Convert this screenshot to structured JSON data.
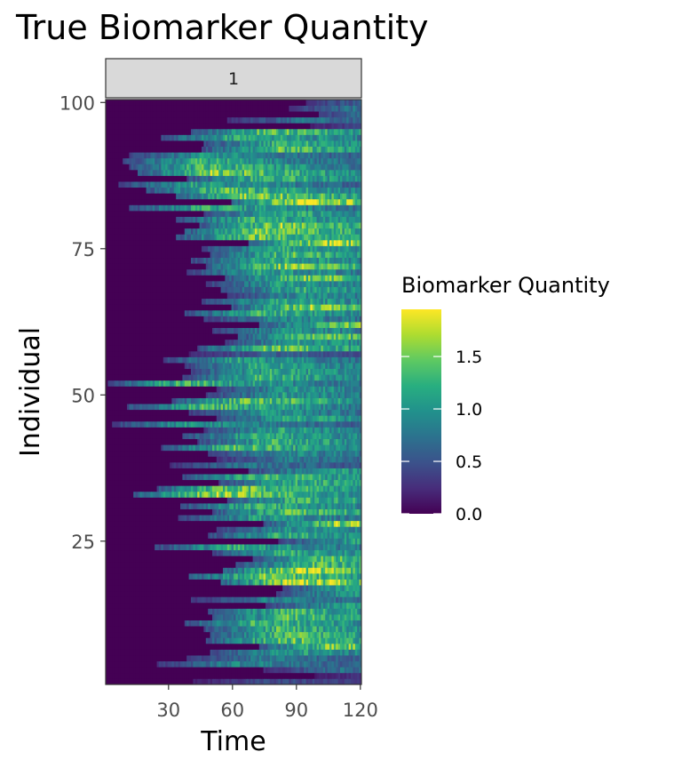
{
  "chart_data": {
    "type": "heatmap",
    "title": "True Biomarker Quantity",
    "xlabel": "Time",
    "ylabel": "Individual",
    "facet": "1",
    "x_range": [
      1,
      120
    ],
    "y_range": [
      1,
      100
    ],
    "x_ticks": [
      30,
      60,
      90,
      120
    ],
    "y_ticks": [
      25,
      50,
      75,
      100
    ],
    "legend": {
      "title": "Biomarker Quantity",
      "ticks": [
        0.0,
        0.5,
        1.0,
        1.5
      ],
      "tick_labels": [
        "0.0",
        "0.5",
        "1.0",
        "1.5"
      ],
      "range": [
        0,
        1.95
      ],
      "colormap": "viridis"
    },
    "onset_time_by_individual": [
      42,
      99,
      75,
      25,
      39,
      50,
      73,
      48,
      50,
      47,
      38,
      51,
      49,
      76,
      41,
      81,
      84,
      55,
      40,
      56,
      62,
      70,
      51,
      24,
      82,
      49,
      53,
      75,
      35,
      51,
      36,
      58,
      14,
      25,
      54,
      37,
      68,
      31,
      53,
      49,
      27,
      44,
      37,
      47,
      4,
      53,
      40,
      11,
      32,
      48,
      53,
      2,
      37,
      41,
      38,
      28,
      40,
      44,
      57,
      63,
      51,
      73,
      47,
      38,
      60,
      46,
      58,
      55,
      48,
      57,
      39,
      48,
      41,
      50,
      46,
      68,
      34,
      38,
      45,
      34,
      47,
      12,
      60,
      34,
      20,
      7,
      39,
      16,
      12,
      9,
      12,
      46,
      47,
      27,
      41,
      97,
      58,
      101,
      87,
      95
    ],
    "peak_quantity_by_individual": [
      0.45,
      0.4,
      0.7,
      0.9,
      0.8,
      1.1,
      1.5,
      1.45,
      1.35,
      1.3,
      1.3,
      1.35,
      1.3,
      1.05,
      0.85,
      1.1,
      1.2,
      1.75,
      1.5,
      1.7,
      1.35,
      1.4,
      1.2,
      1.2,
      1.1,
      1.25,
      1.0,
      1.6,
      1.05,
      1.4,
      1.25,
      1.3,
      1.6,
      1.5,
      1.25,
      1.35,
      1.1,
      0.75,
      0.8,
      0.95,
      1.35,
      1.25,
      1.25,
      1.1,
      1.0,
      1.15,
      1.0,
      1.35,
      1.45,
      1.05,
      1.05,
      1.3,
      1.25,
      1.2,
      1.15,
      1.1,
      0.6,
      1.45,
      1.1,
      1.45,
      1.0,
      1.5,
      0.95,
      1.25,
      1.6,
      1.15,
      0.95,
      1.2,
      1.05,
      1.5,
      1.1,
      1.55,
      1.2,
      1.35,
      1.15,
      1.7,
      1.45,
      1.55,
      1.55,
      1.25,
      1.2,
      1.2,
      1.9,
      1.6,
      1.4,
      1.1,
      1.3,
      1.55,
      1.35,
      1.2,
      1.0,
      1.35,
      1.25,
      1.25,
      1.4,
      0.5,
      0.75,
      1.0,
      0.8,
      0.75
    ],
    "peak_time_offset": 35
  }
}
